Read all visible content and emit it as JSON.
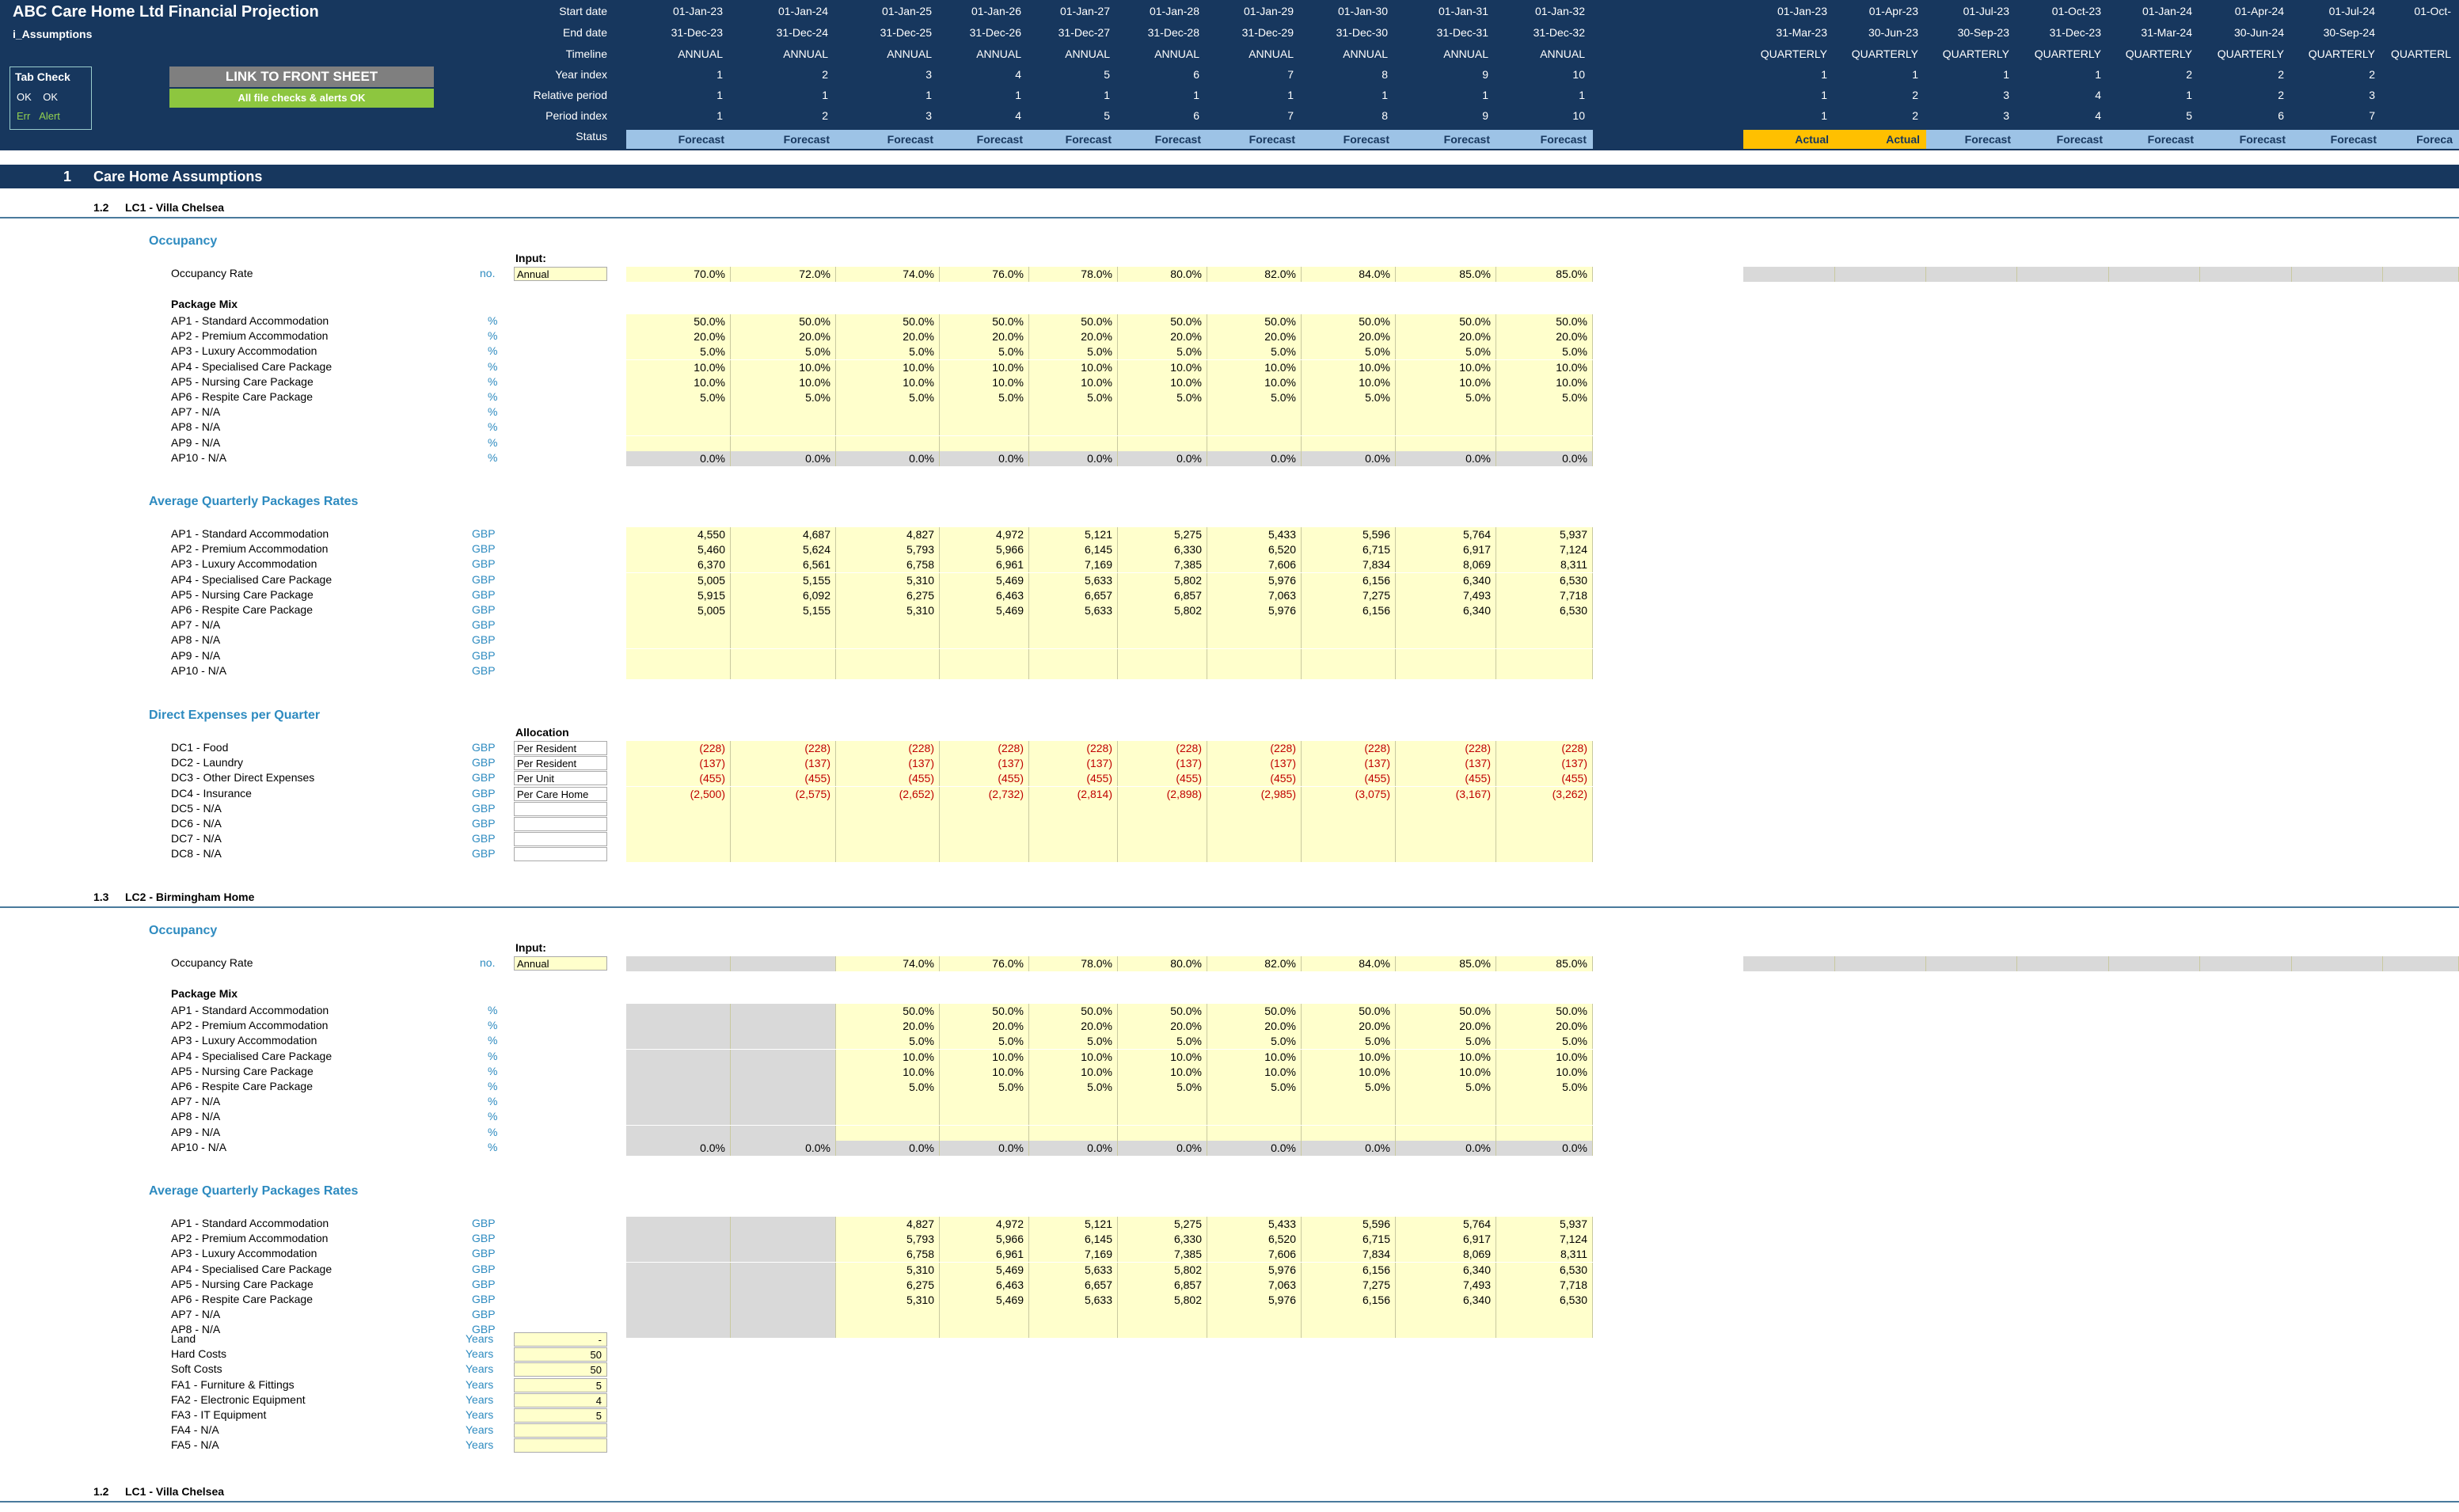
{
  "app": {
    "title": "ABC Care Home Ltd Financial Projection",
    "sheet": "i_Assumptions"
  },
  "tabcheck": {
    "title": "Tab Check",
    "ok1": "OK",
    "ok2": "OK",
    "err": "Err",
    "alert": "Alert"
  },
  "buttons": {
    "link": "LINK TO FRONT SHEET",
    "ok": "All file checks & alerts OK"
  },
  "header_labels": [
    "Start date",
    "End date",
    "Timeline",
    "Year index",
    "Relative period",
    "Period index",
    "Status"
  ],
  "annual": {
    "start": [
      "01-Jan-23",
      "01-Jan-24",
      "01-Jan-25",
      "01-Jan-26",
      "01-Jan-27",
      "01-Jan-28",
      "01-Jan-29",
      "01-Jan-30",
      "01-Jan-31",
      "01-Jan-32"
    ],
    "end": [
      "31-Dec-23",
      "31-Dec-24",
      "31-Dec-25",
      "31-Dec-26",
      "31-Dec-27",
      "31-Dec-28",
      "31-Dec-29",
      "31-Dec-30",
      "31-Dec-31",
      "31-Dec-32"
    ],
    "timeline": "ANNUAL",
    "year_index": [
      "1",
      "2",
      "3",
      "4",
      "5",
      "6",
      "7",
      "8",
      "9",
      "10"
    ],
    "relative": [
      "1",
      "1",
      "1",
      "1",
      "1",
      "1",
      "1",
      "1",
      "1",
      "1"
    ],
    "period_index": [
      "1",
      "2",
      "3",
      "4",
      "5",
      "6",
      "7",
      "8",
      "9",
      "10"
    ],
    "status": "Forecast"
  },
  "quarterly": {
    "start": [
      "01-Jan-23",
      "01-Apr-23",
      "01-Jul-23",
      "01-Oct-23",
      "01-Jan-24",
      "01-Apr-24",
      "01-Jul-24",
      "01-Oct-"
    ],
    "end": [
      "31-Mar-23",
      "30-Jun-23",
      "30-Sep-23",
      "31-Dec-23",
      "31-Mar-24",
      "30-Jun-24",
      "30-Sep-24",
      ""
    ],
    "timeline": [
      "QUARTERLY",
      "QUARTERLY",
      "QUARTERLY",
      "QUARTERLY",
      "QUARTERLY",
      "QUARTERLY",
      "QUARTERLY",
      "QUARTERL"
    ],
    "year_index": [
      "1",
      "1",
      "1",
      "1",
      "2",
      "2",
      "2",
      ""
    ],
    "relative": [
      "1",
      "2",
      "3",
      "4",
      "1",
      "2",
      "3",
      ""
    ],
    "period_index": [
      "1",
      "2",
      "3",
      "4",
      "5",
      "6",
      "7",
      ""
    ],
    "status": [
      "Actual",
      "Actual",
      "Forecast",
      "Forecast",
      "Forecast",
      "Forecast",
      "Forecast",
      "Foreca"
    ]
  },
  "colors": {
    "header_bg": "#17375e",
    "forecast": "#9dc3e6",
    "actual": "#ffc000",
    "input": "#ffffcc",
    "gray": "#d9d9d9",
    "accent": "#2e8bc0"
  },
  "section1": {
    "num": "1",
    "title": "Care Home Assumptions"
  },
  "lc1": {
    "num": "1.2",
    "title": "LC1 - Villa Chelsea"
  },
  "lc2": {
    "num": "1.3",
    "title": "LC2 - Birmingham Home"
  },
  "lc1b": {
    "num": "1.2",
    "title": "LC1 - Villa Chelsea"
  },
  "labels": {
    "occupancy": "Occupancy",
    "occ_rate": "Occupancy Rate",
    "occ_unit": "no.",
    "input": "Input:",
    "annual": "Annual",
    "package_mix": "Package Mix",
    "avg_rates": "Average Quarterly Packages Rates",
    "direct": "Direct Expenses per Quarter",
    "allocation": "Allocation"
  },
  "ap_names": [
    "AP1 - Standard Accommodation",
    "AP2 - Premium Accommodation",
    "AP3 - Luxury Accommodation",
    "AP4 - Specialised Care Package",
    "AP5 - Nursing Care Package",
    "AP6 - Respite Care Package",
    "AP7 - N/A",
    "AP8 - N/A",
    "AP9 - N/A",
    "AP10 - N/A"
  ],
  "dc_names": [
    "DC1 - Food",
    "DC2 - Laundry",
    "DC3 - Other Direct Expenses",
    "DC4 - Insurance",
    "DC5 - N/A",
    "DC6 - N/A",
    "DC7 - N/A",
    "DC8 - N/A"
  ],
  "dc_alloc": [
    "Per Resident",
    "Per Resident",
    "Per Unit",
    "Per Care Home",
    "",
    "",
    "",
    ""
  ],
  "pct": "%",
  "gbp": "GBP",
  "lc1_occ": [
    "70.0%",
    "72.0%",
    "74.0%",
    "76.0%",
    "78.0%",
    "80.0%",
    "82.0%",
    "84.0%",
    "85.0%",
    "85.0%"
  ],
  "mix": [
    "50.0%",
    "20.0%",
    "5.0%",
    "10.0%",
    "10.0%",
    "5.0%",
    "",
    "",
    "",
    "0.0%"
  ],
  "lc1_rates": [
    [
      "4,550",
      "4,687",
      "4,827",
      "4,972",
      "5,121",
      "5,275",
      "5,433",
      "5,596",
      "5,764",
      "5,937"
    ],
    [
      "5,460",
      "5,624",
      "5,793",
      "5,966",
      "6,145",
      "6,330",
      "6,520",
      "6,715",
      "6,917",
      "7,124"
    ],
    [
      "6,370",
      "6,561",
      "6,758",
      "6,961",
      "7,169",
      "7,385",
      "7,606",
      "7,834",
      "8,069",
      "8,311"
    ],
    [
      "5,005",
      "5,155",
      "5,310",
      "5,469",
      "5,633",
      "5,802",
      "5,976",
      "6,156",
      "6,340",
      "6,530"
    ],
    [
      "5,915",
      "6,092",
      "6,275",
      "6,463",
      "6,657",
      "6,857",
      "7,063",
      "7,275",
      "7,493",
      "7,718"
    ],
    [
      "5,005",
      "5,155",
      "5,310",
      "5,469",
      "5,633",
      "5,802",
      "5,976",
      "6,156",
      "6,340",
      "6,530"
    ]
  ],
  "dc_vals": [
    [
      "(228)",
      "(228)",
      "(228)",
      "(228)",
      "(228)",
      "(228)",
      "(228)",
      "(228)",
      "(228)",
      "(228)"
    ],
    [
      "(137)",
      "(137)",
      "(137)",
      "(137)",
      "(137)",
      "(137)",
      "(137)",
      "(137)",
      "(137)",
      "(137)"
    ],
    [
      "(455)",
      "(455)",
      "(455)",
      "(455)",
      "(455)",
      "(455)",
      "(455)",
      "(455)",
      "(455)",
      "(455)"
    ],
    [
      "(2,500)",
      "(2,575)",
      "(2,652)",
      "(2,732)",
      "(2,814)",
      "(2,898)",
      "(2,985)",
      "(3,075)",
      "(3,167)",
      "(3,262)"
    ]
  ],
  "lc2_occ": [
    "",
    "",
    "74.0%",
    "76.0%",
    "78.0%",
    "80.0%",
    "82.0%",
    "84.0%",
    "85.0%",
    "85.0%"
  ],
  "lc2_rates": [
    [
      "4,827",
      "4,972",
      "5,121",
      "5,275",
      "5,433",
      "5,596",
      "5,764",
      "5,937"
    ],
    [
      "5,793",
      "5,966",
      "6,145",
      "6,330",
      "6,520",
      "6,715",
      "6,917",
      "7,124"
    ],
    [
      "6,758",
      "6,961",
      "7,169",
      "7,385",
      "7,606",
      "7,834",
      "8,069",
      "8,311"
    ],
    [
      "5,310",
      "5,469",
      "5,633",
      "5,802",
      "5,976",
      "6,156",
      "6,340",
      "6,530"
    ],
    [
      "6,275",
      "6,463",
      "6,657",
      "6,857",
      "7,063",
      "7,275",
      "7,493",
      "7,718"
    ],
    [
      "5,310",
      "5,469",
      "5,633",
      "5,802",
      "5,976",
      "6,156",
      "6,340",
      "6,530"
    ]
  ],
  "assets": [
    {
      "name": "Land",
      "unit": "Years",
      "val": "-"
    },
    {
      "name": "Hard Costs",
      "unit": "Years",
      "val": "50"
    },
    {
      "name": "Soft Costs",
      "unit": "Years",
      "val": "50"
    },
    {
      "name": "FA1 - Furniture & Fittings",
      "unit": "Years",
      "val": "5"
    },
    {
      "name": "FA2 - Electronic Equipment",
      "unit": "Years",
      "val": "4"
    },
    {
      "name": "FA3 - IT Equipment",
      "unit": "Years",
      "val": "5"
    },
    {
      "name": "FA4 - N/A",
      "unit": "Years",
      "val": ""
    },
    {
      "name": "FA5 - N/A",
      "unit": "Years",
      "val": ""
    }
  ]
}
